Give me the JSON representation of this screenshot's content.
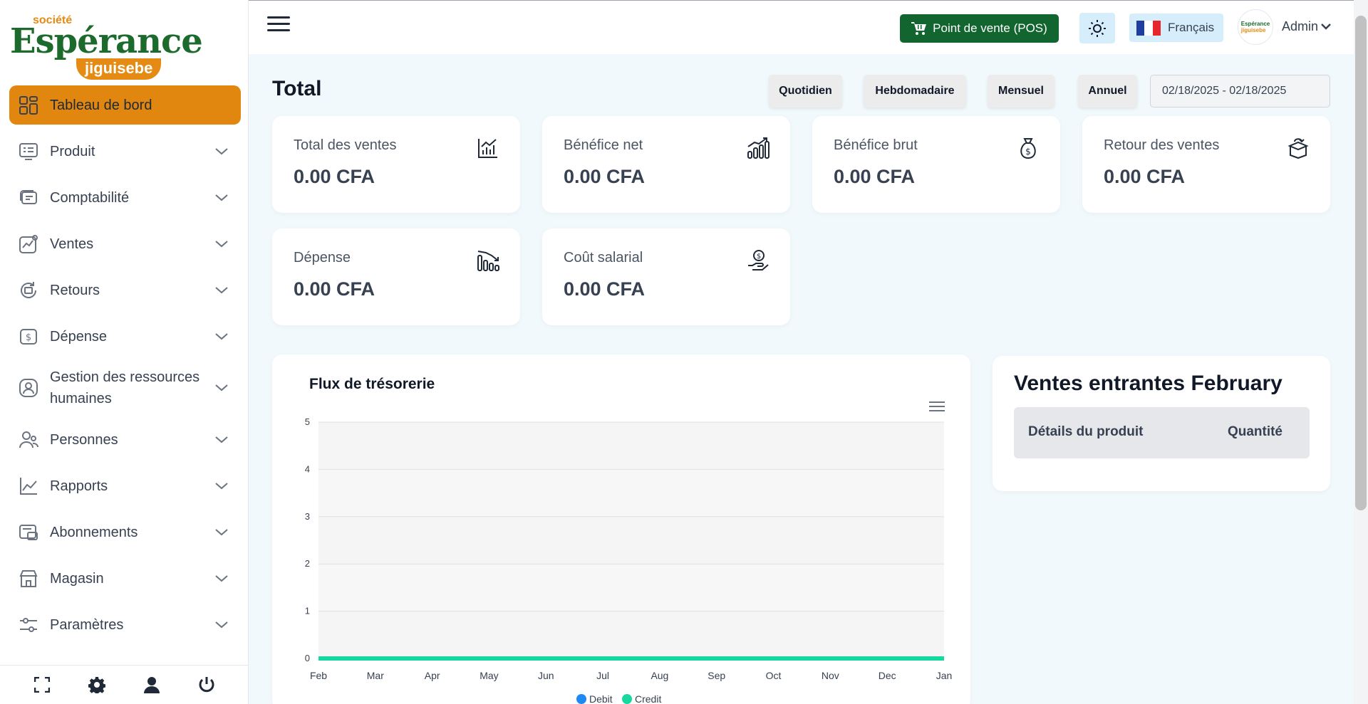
{
  "logo": {
    "top": "société",
    "main": "Espérance",
    "sub": "jiguisebe"
  },
  "sidebar": {
    "items": [
      {
        "label": "Tableau de bord",
        "icon": "dashboard-icon",
        "active": true
      },
      {
        "label": "Produit",
        "icon": "product-icon"
      },
      {
        "label": "Comptabilité",
        "icon": "accounting-icon"
      },
      {
        "label": "Ventes",
        "icon": "sales-icon"
      },
      {
        "label": "Retours",
        "icon": "returns-icon"
      },
      {
        "label": "Dépense",
        "icon": "expense-icon"
      },
      {
        "label": "Gestion des ressources humaines",
        "icon": "hr-icon"
      },
      {
        "label": "Personnes",
        "icon": "people-icon"
      },
      {
        "label": "Rapports",
        "icon": "reports-icon"
      },
      {
        "label": "Abonnements",
        "icon": "subscriptions-icon"
      },
      {
        "label": "Magasin",
        "icon": "store-icon"
      },
      {
        "label": "Paramètres",
        "icon": "settings-sliders-icon"
      }
    ],
    "footer_icons": [
      "fullscreen-icon",
      "gear-icon",
      "user-icon",
      "power-icon"
    ]
  },
  "topbar": {
    "pos_label": "Point de vente (POS)",
    "language": "Français",
    "user": "Admin",
    "avatar_text_a": "Espérance",
    "avatar_text_b": "jiguisebe"
  },
  "main": {
    "title": "Total",
    "filters": [
      "Quotidien",
      "Hebdomadaire",
      "Mensuel",
      "Annuel"
    ],
    "date_range": "02/18/2025 - 02/18/2025",
    "stats": [
      {
        "label": "Total des ventes",
        "value": "0.00 CFA",
        "icon": "chart-icon"
      },
      {
        "label": "Bénéfice net",
        "value": "0.00 CFA",
        "icon": "growth-icon"
      },
      {
        "label": "Bénéfice brut",
        "value": "0.00 CFA",
        "icon": "money-bag-icon"
      },
      {
        "label": "Retour des ventes",
        "value": "0.00 CFA",
        "icon": "box-return-icon"
      },
      {
        "label": "Dépense",
        "value": "0.00 CFA",
        "icon": "decline-icon"
      },
      {
        "label": "Coût salarial",
        "value": "0.00 CFA",
        "icon": "salary-hand-icon"
      }
    ],
    "incoming": {
      "title": "Ventes entrantes February",
      "col_product": "Détails du produit",
      "col_qty": "Quantité"
    }
  },
  "colors": {
    "accent": "#e1870f",
    "pos": "#13652f",
    "debit": "#1e88f5",
    "credit": "#16d9a0"
  },
  "chart_data": {
    "type": "line",
    "title": "Flux de trésorerie",
    "categories": [
      "Feb",
      "Mar",
      "Apr",
      "May",
      "Jun",
      "Jul",
      "Aug",
      "Sep",
      "Oct",
      "Nov",
      "Dec",
      "Jan"
    ],
    "series": [
      {
        "name": "Debit",
        "values": [
          0,
          0,
          0,
          0,
          0,
          0,
          0,
          0,
          0,
          0,
          0,
          0
        ]
      },
      {
        "name": "Credit",
        "values": [
          0,
          0,
          0,
          0,
          0,
          0,
          0,
          0,
          0,
          0,
          0,
          0
        ]
      }
    ],
    "ylim": [
      0,
      5
    ],
    "yticks": [
      "0",
      "1",
      "2",
      "3",
      "4",
      "5"
    ],
    "legend": "bottom"
  }
}
